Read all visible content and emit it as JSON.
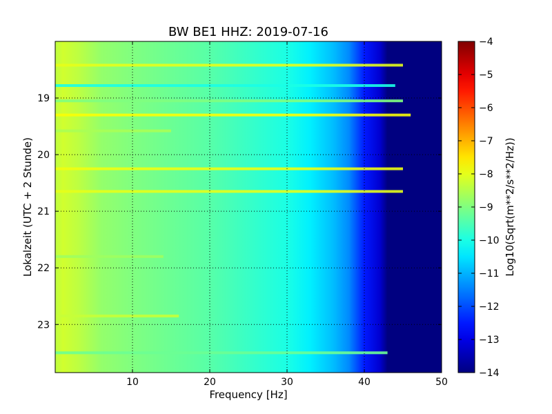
{
  "chart_data": {
    "type": "heatmap",
    "title": "BW BE1 HHZ: 2019-07-16",
    "xlabel": "Frequency [Hz]",
    "ylabel": "Lokalzeit (UTC + 2 Stunde)",
    "xlim": [
      0,
      50
    ],
    "ylim": [
      18.0,
      23.85
    ],
    "y_inverted": true,
    "x_ticks": [
      10,
      20,
      30,
      40,
      50
    ],
    "y_ticks": [
      19,
      20,
      21,
      22,
      23
    ],
    "grid": "dotted",
    "colormap": "jet",
    "colorbar": {
      "label": "Log10(Sqrt(m**2/s**2/Hz))",
      "range": [
        -14,
        -4
      ],
      "ticks": [
        -4,
        -5,
        -6,
        -7,
        -8,
        -9,
        -10,
        -11,
        -12,
        -13,
        -14
      ]
    },
    "spectrum_profile": [
      {
        "freq": 0,
        "value": -8.4
      },
      {
        "freq": 1,
        "value": -8.2
      },
      {
        "freq": 3,
        "value": -8.4
      },
      {
        "freq": 6,
        "value": -8.8
      },
      {
        "freq": 10,
        "value": -9.0
      },
      {
        "freq": 15,
        "value": -9.2
      },
      {
        "freq": 20,
        "value": -9.4
      },
      {
        "freq": 25,
        "value": -9.7
      },
      {
        "freq": 30,
        "value": -10.0
      },
      {
        "freq": 33,
        "value": -10.4
      },
      {
        "freq": 36,
        "value": -10.9
      },
      {
        "freq": 38,
        "value": -11.4
      },
      {
        "freq": 40,
        "value": -12.5
      },
      {
        "freq": 42,
        "value": -13.2
      },
      {
        "freq": 43,
        "value": -14.0
      },
      {
        "freq": 50,
        "value": -14.0
      }
    ],
    "horizontal_bands": [
      {
        "time": 18.42,
        "value": -8.0,
        "freq_end": 45
      },
      {
        "time": 18.78,
        "value": -10.0,
        "freq_end": 44
      },
      {
        "time": 19.05,
        "value": -9.0,
        "freq_end": 45
      },
      {
        "time": 19.3,
        "value": -7.8,
        "freq_end": 46
      },
      {
        "time": 19.58,
        "value": -8.6,
        "freq_end": 15
      },
      {
        "time": 20.25,
        "value": -7.9,
        "freq_end": 45
      },
      {
        "time": 20.65,
        "value": -8.0,
        "freq_end": 45
      },
      {
        "time": 21.8,
        "value": -8.7,
        "freq_end": 14
      },
      {
        "time": 22.85,
        "value": -8.3,
        "freq_end": 16
      },
      {
        "time": 23.5,
        "value": -9.2,
        "freq_end": 43
      }
    ]
  }
}
